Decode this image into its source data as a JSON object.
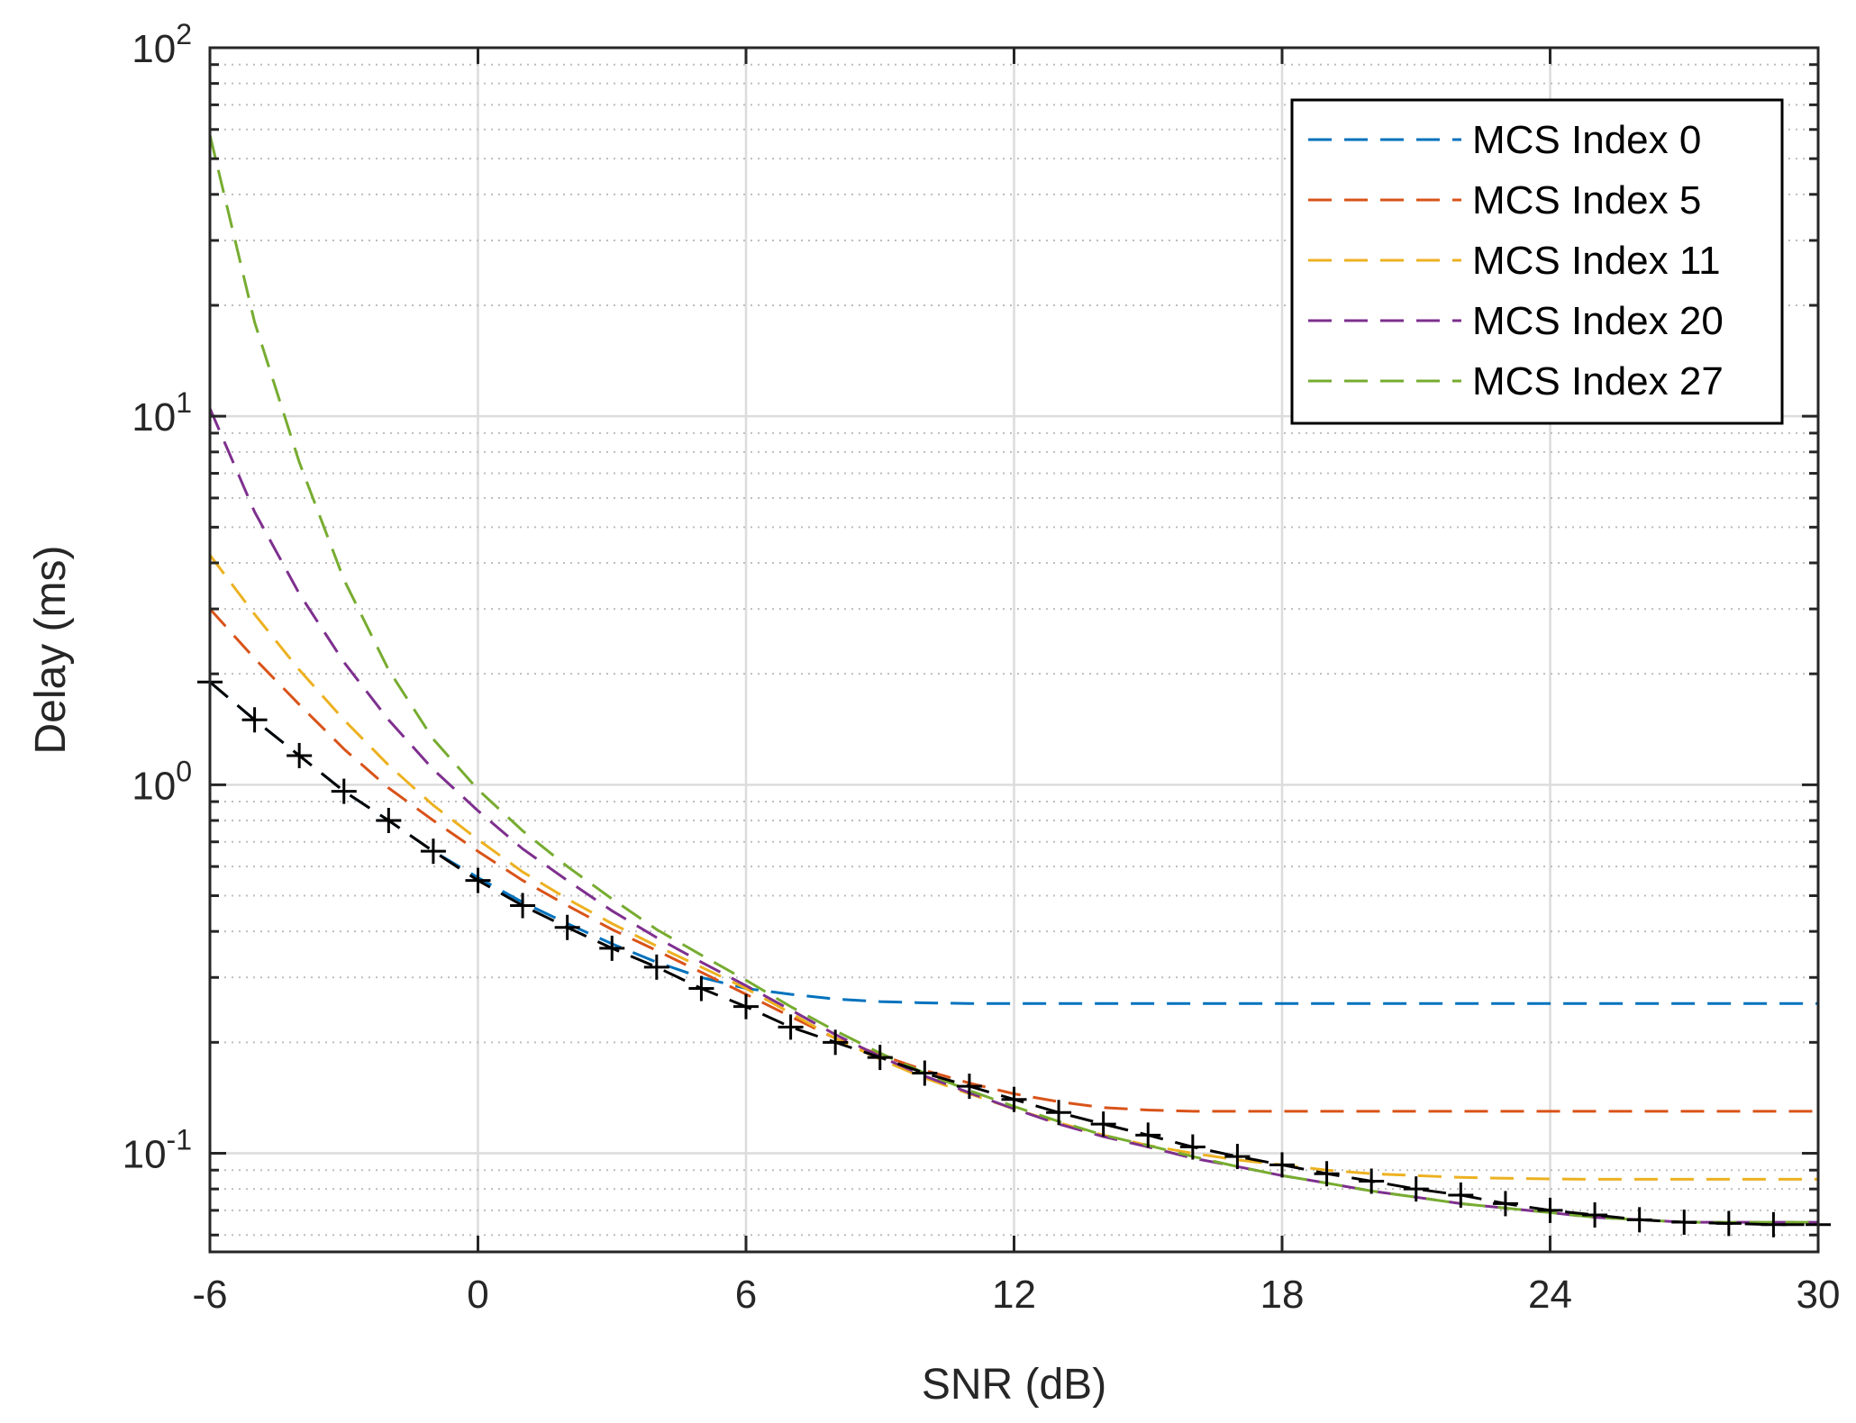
{
  "chart_data": {
    "type": "line",
    "title": "",
    "xlabel": "SNR (dB)",
    "ylabel": "Delay (ms)",
    "xscale": "linear",
    "yscale": "log",
    "xlim": [
      -6,
      30
    ],
    "ylim": [
      0.054,
      100
    ],
    "x_ticks": [
      -6,
      0,
      6,
      12,
      18,
      24,
      30
    ],
    "y_ticks": [
      {
        "value": 0.1,
        "base": "10",
        "exp": "-1"
      },
      {
        "value": 1,
        "base": "10",
        "exp": "0"
      },
      {
        "value": 10,
        "base": "10",
        "exp": "1"
      },
      {
        "value": 100,
        "base": "10",
        "exp": "2"
      }
    ],
    "grid": true,
    "legend_position": "top-right",
    "x": [
      -6,
      -5,
      -4,
      -3,
      -2,
      -1,
      0,
      1,
      2,
      3,
      4,
      5,
      6,
      7,
      8,
      9,
      10,
      11,
      12,
      13,
      14,
      15,
      16,
      17,
      18,
      19,
      20,
      21,
      22,
      23,
      24,
      25,
      26,
      27,
      28,
      29,
      30
    ],
    "series": [
      {
        "name": "MCS Index 0",
        "color": "#0072BD",
        "style": "dashed",
        "values": [
          1.9,
          1.5,
          1.2,
          0.96,
          0.8,
          0.66,
          0.56,
          0.48,
          0.42,
          0.37,
          0.33,
          0.3,
          0.28,
          0.27,
          0.262,
          0.258,
          0.256,
          0.255,
          0.255,
          0.255,
          0.255,
          0.255,
          0.255,
          0.255,
          0.255,
          0.255,
          0.255,
          0.255,
          0.255,
          0.255,
          0.255,
          0.255,
          0.255,
          0.255,
          0.255,
          0.255,
          0.255
        ]
      },
      {
        "name": "MCS Index 5",
        "color": "#D95319",
        "style": "dashed",
        "values": [
          3.0,
          2.2,
          1.65,
          1.25,
          0.98,
          0.8,
          0.66,
          0.55,
          0.47,
          0.405,
          0.355,
          0.31,
          0.27,
          0.235,
          0.205,
          0.185,
          0.168,
          0.155,
          0.145,
          0.138,
          0.133,
          0.131,
          0.13,
          0.13,
          0.13,
          0.13,
          0.13,
          0.13,
          0.13,
          0.13,
          0.13,
          0.13,
          0.13,
          0.13,
          0.13,
          0.13,
          0.13
        ]
      },
      {
        "name": "MCS Index 11",
        "color": "#EDB120",
        "style": "dashed",
        "values": [
          4.2,
          2.9,
          2.05,
          1.5,
          1.13,
          0.88,
          0.71,
          0.58,
          0.49,
          0.42,
          0.365,
          0.32,
          0.28,
          0.24,
          0.205,
          0.18,
          0.16,
          0.145,
          0.132,
          0.121,
          0.112,
          0.105,
          0.1,
          0.096,
          0.093,
          0.09,
          0.088,
          0.087,
          0.086,
          0.0855,
          0.0852,
          0.085,
          0.085,
          0.085,
          0.085,
          0.085,
          0.085
        ]
      },
      {
        "name": "MCS Index 20",
        "color": "#7E2F8E",
        "style": "dashed",
        "values": [
          10.5,
          5.5,
          3.3,
          2.15,
          1.5,
          1.1,
          0.85,
          0.67,
          0.55,
          0.455,
          0.385,
          0.33,
          0.285,
          0.245,
          0.21,
          0.183,
          0.162,
          0.146,
          0.132,
          0.12,
          0.111,
          0.104,
          0.097,
          0.092,
          0.087,
          0.083,
          0.079,
          0.076,
          0.073,
          0.071,
          0.069,
          0.067,
          0.066,
          0.065,
          0.065,
          0.065,
          0.065
        ]
      },
      {
        "name": "MCS Index 27",
        "color": "#77AC30",
        "style": "dashed",
        "values": [
          58,
          18,
          7.5,
          3.6,
          2.05,
          1.33,
          0.97,
          0.75,
          0.6,
          0.49,
          0.405,
          0.345,
          0.295,
          0.25,
          0.215,
          0.187,
          0.165,
          0.148,
          0.134,
          0.122,
          0.112,
          0.105,
          0.098,
          0.092,
          0.087,
          0.083,
          0.079,
          0.076,
          0.073,
          0.071,
          0.069,
          0.067,
          0.066,
          0.065,
          0.065,
          0.065,
          0.065
        ]
      },
      {
        "name": "",
        "color": "#000000",
        "style": "dashed-markers",
        "marker": "+",
        "values": [
          1.9,
          1.5,
          1.2,
          0.96,
          0.8,
          0.66,
          0.55,
          0.47,
          0.41,
          0.36,
          0.32,
          0.28,
          0.25,
          0.22,
          0.2,
          0.182,
          0.165,
          0.152,
          0.14,
          0.129,
          0.12,
          0.112,
          0.104,
          0.098,
          0.093,
          0.088,
          0.084,
          0.08,
          0.077,
          0.073,
          0.07,
          0.068,
          0.066,
          0.065,
          0.0645,
          0.064,
          0.064
        ]
      }
    ]
  }
}
